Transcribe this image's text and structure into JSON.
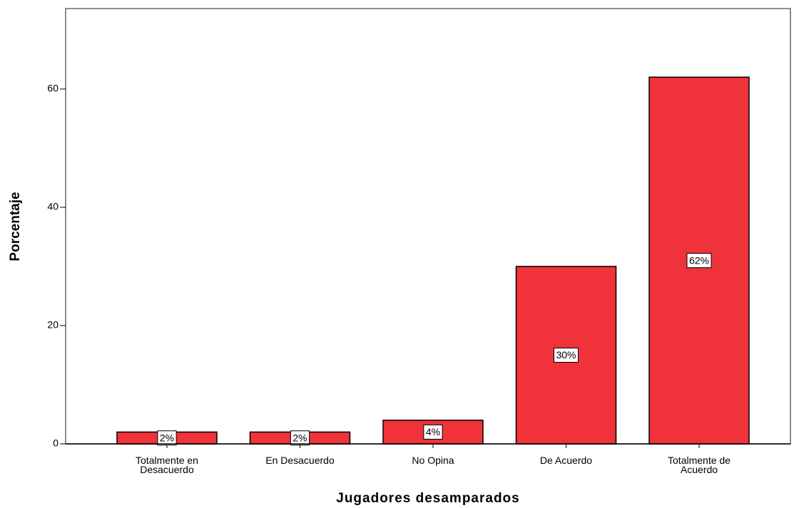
{
  "chart_data": {
    "type": "bar",
    "x_label": "Jugadores desamparados",
    "y_label": "Porcentaje",
    "categories": [
      "Totalmente en Desacuerdo",
      "En Desacuerdo",
      "No Opina",
      "De Acuerdo",
      "Totalmente de Acuerdo"
    ],
    "values": [
      2,
      2,
      4,
      30,
      62
    ],
    "value_labels": [
      "2%",
      "2%",
      "4%",
      "30%",
      "62%"
    ],
    "color": "#f0323a",
    "ylim": [
      0,
      73.6
    ],
    "yticks": [
      0,
      20,
      40,
      60
    ],
    "grid": false
  }
}
